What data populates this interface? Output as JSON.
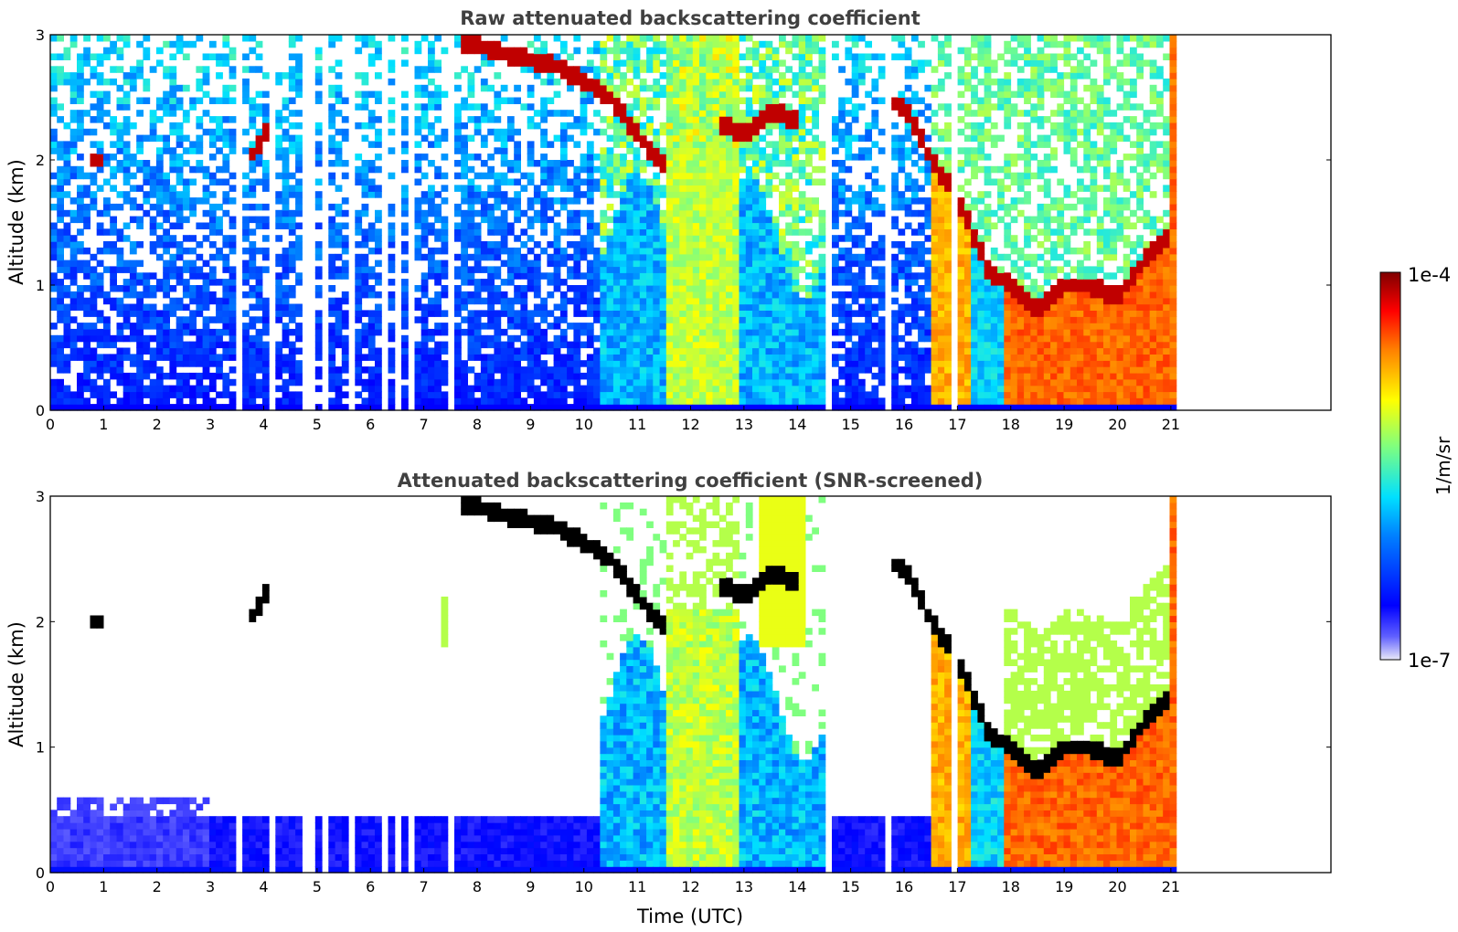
{
  "chart_data": [
    {
      "type": "heatmap",
      "title": "Raw attenuated backscattering coefficient",
      "xlabel": "",
      "ylabel": "Altitude (km)",
      "xlim": [
        0,
        24
      ],
      "ylim": [
        0,
        3
      ],
      "xticks": [
        "0",
        "1",
        "2",
        "3",
        "4",
        "5",
        "6",
        "7",
        "8",
        "9",
        "10",
        "11",
        "12",
        "13",
        "14",
        "15",
        "16",
        "17",
        "18",
        "19",
        "20",
        "21"
      ],
      "yticks": [
        "0",
        "1",
        "2",
        "3"
      ],
      "data_end_hour": 21.1,
      "dropout_hours": [
        3.1,
        3.55,
        4.2,
        4.75,
        4.95,
        5.2,
        5.45,
        5.65,
        5.95,
        6.25,
        6.55,
        6.75,
        7.5,
        7.55,
        14.6,
        15.7,
        16.75,
        16.95
      ],
      "cloud_layers": [
        {
          "hours": [
            0.7,
            1.0
          ],
          "altitude_km": [
            2.0,
            2.0
          ]
        },
        {
          "hours": [
            3.75,
            4.05
          ],
          "altitude_km": [
            2.02,
            2.25
          ]
        },
        {
          "hours": [
            7.7,
            8.5,
            9.5,
            10.5,
            11.2,
            11.5
          ],
          "altitude_km": [
            2.95,
            2.85,
            2.75,
            2.5,
            2.1,
            1.95
          ]
        },
        {
          "hours": [
            12.5,
            13.0,
            13.5,
            14.0
          ],
          "altitude_km": [
            2.3,
            2.2,
            2.4,
            2.3
          ]
        },
        {
          "hours": [
            15.7,
            16.1,
            16.5,
            17.0,
            17.6,
            18.0,
            18.5,
            19.0,
            19.5,
            20.0,
            20.5,
            21.0
          ],
          "altitude_km": [
            2.5,
            2.35,
            2.0,
            1.7,
            1.1,
            1.0,
            0.8,
            1.0,
            1.0,
            0.9,
            1.2,
            1.4
          ]
        }
      ]
    },
    {
      "type": "heatmap",
      "title": "Attenuated backscattering coefficient (SNR-screened)",
      "xlabel": "Time (UTC)",
      "ylabel": "Altitude (km)",
      "xlim": [
        0,
        24
      ],
      "ylim": [
        0,
        3
      ],
      "xticks": [
        "0",
        "1",
        "2",
        "3",
        "4",
        "5",
        "6",
        "7",
        "8",
        "9",
        "10",
        "11",
        "12",
        "13",
        "14",
        "15",
        "16",
        "17",
        "18",
        "19",
        "20",
        "21"
      ],
      "yticks": [
        "0",
        "1",
        "2",
        "3"
      ],
      "data_end_hour": 21.1,
      "screened_boundary_layer_km": [
        [
          0,
          0.5
        ],
        [
          7.2,
          0.4
        ],
        [
          10.3,
          0.4
        ],
        [
          16.5,
          0.4
        ]
      ],
      "saturated_cloud_color": "#000000"
    }
  ],
  "colorbar": {
    "label": "1/m/sr",
    "max_label": "1e-4",
    "min_label": "1e-7",
    "colormap": "jet",
    "stops": [
      "#e8e8f8",
      "#0000ff",
      "#00c8ff",
      "#7fff7f",
      "#ffff00",
      "#ff7f00",
      "#ff0000",
      "#800000"
    ]
  }
}
